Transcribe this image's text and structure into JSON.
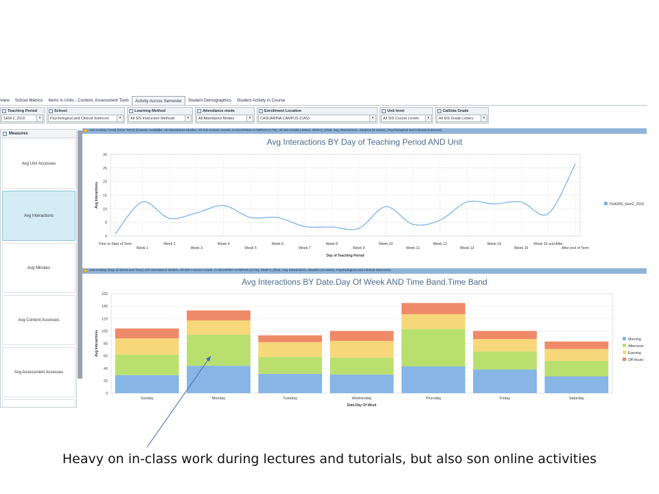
{
  "tabs": [
    {
      "label": "Overview"
    },
    {
      "label": "School Metrics"
    },
    {
      "label": "Items in Units - Content, Assessment Tools"
    },
    {
      "label": "Activity Across Semester"
    },
    {
      "label": "Student Demographics"
    },
    {
      "label": "Student Activity in Course"
    }
  ],
  "active_tab_index": 3,
  "filters": [
    {
      "label": "Teaching Period",
      "value": "SEM-2_2015"
    },
    {
      "label": "School",
      "value": "Psychological and Clinical Sciences"
    },
    {
      "label": "Learning Method",
      "value": "All SIS Instruction Methods"
    },
    {
      "label": "Attendance mode",
      "value": "All Attendance Modes"
    },
    {
      "label": "Enrollment Location",
      "value": "CASUARINA CAMPUS (CAS)"
    },
    {
      "label": "Unit level",
      "value": "All SIS Course Levels"
    },
    {
      "label": "Callista Grade",
      "value": "All SIS Grade Letters"
    }
  ],
  "measures": {
    "title": "Measures",
    "items": [
      {
        "label": "Avg Unit Accesses"
      },
      {
        "label": "Avg Interactions"
      },
      {
        "label": "Avg Minutes"
      },
      {
        "label": "Avg Content Accesses"
      },
      {
        "label": "Avg Assessment Accesses"
      }
    ],
    "active_index": 1
  },
  "chart_data": [
    {
      "type": "line",
      "header": "Unit Activity Trend (Over Term) (Course Available, All Attendance Modes, All SIS Course Levels, CASUARINA CAMPUS (CAS), All SIS Grade Letters, SEM-2_2015, Avg Interactions, Student (S.name), Psychological and Clinical Sciences)",
      "title": "Avg Interactions BY Day of Teaching Period AND Unit",
      "xlabel": "Day of Teaching Period",
      "ylabel": "Avg Interactions",
      "ylim": [
        0,
        30
      ],
      "yticks": [
        0,
        5,
        10,
        15,
        20,
        25,
        30
      ],
      "grid": true,
      "legend_position": "right",
      "categories": [
        "Prior to Start of Term",
        "Week 1",
        "Week 2",
        "Week 3",
        "Week 4",
        "Week 5",
        "Week 6",
        "Week 7",
        "Week 8",
        "Week 9",
        "Week 10",
        "Week 11",
        "Week 12",
        "Week 13",
        "Week 14",
        "Week 15",
        "Week 16 and After",
        "After end of Term"
      ],
      "series": [
        {
          "name": "PHA306_Sem2_2015",
          "color": "#7fb2e5",
          "values": [
            0.8,
            12.5,
            6.5,
            8.5,
            11.2,
            6.8,
            6.8,
            3.5,
            3.3,
            2.8,
            10.8,
            4.3,
            5.8,
            12.5,
            11.8,
            12.5,
            8.2,
            26.5
          ]
        }
      ]
    },
    {
      "type": "bar",
      "stacked": true,
      "header": "Unit Activity (Day of Week and Time) (All Attendance Modes, All SIS Course Levels, CASUARINA CAMPUS (CAS), SEM-2_2015, Avg Interactions, Student (S.name), Psychological and Clinical Sciences)",
      "title": "Avg Interactions BY Date.Day Of Week AND Time Band.Time Band",
      "xlabel": "Date.Day Of Week",
      "ylabel": "Avg Interactions",
      "ylim": [
        0,
        160
      ],
      "yticks": [
        0,
        20,
        40,
        60,
        80,
        100,
        120,
        140,
        160
      ],
      "grid": true,
      "legend_position": "right",
      "categories": [
        "Sunday",
        "Monday",
        "Tuesday",
        "Wednesday",
        "Thursday",
        "Friday",
        "Saturday"
      ],
      "series": [
        {
          "name": "Morning",
          "color": "#86b5e6",
          "values": [
            29,
            44,
            31,
            30,
            43,
            38,
            27
          ]
        },
        {
          "name": "Afternoon",
          "color": "#b9e06f",
          "values": [
            33,
            50,
            27,
            27,
            60,
            29,
            25
          ]
        },
        {
          "name": "Evening",
          "color": "#f6d77a",
          "values": [
            26,
            23,
            24,
            27,
            24,
            20,
            19
          ]
        },
        {
          "name": "Off Hours",
          "color": "#ef8a68",
          "values": [
            16,
            16,
            11,
            16,
            18,
            13,
            12
          ]
        }
      ]
    }
  ],
  "caption": "Heavy on in-class work during lectures and tutorials, but also son online activities"
}
